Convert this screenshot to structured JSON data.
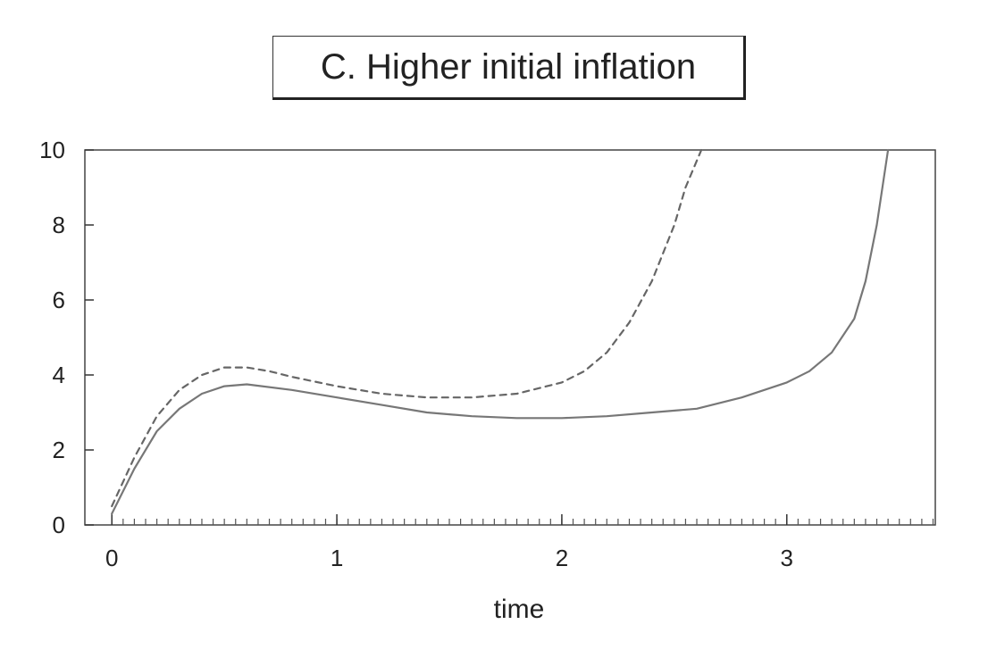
{
  "chart_data": {
    "type": "line",
    "title": "C.  Higher initial inflation",
    "xlabel": "time",
    "ylabel": "",
    "xlim": [
      -0.12,
      3.66
    ],
    "ylim": [
      0,
      10
    ],
    "xticks": [
      0,
      1,
      2,
      3
    ],
    "yticks": [
      0,
      2,
      4,
      6,
      8,
      10
    ],
    "grid": false,
    "legend": "none",
    "series": [
      {
        "style": "dashed",
        "color": "#666666",
        "x": [
          0,
          0.1,
          0.2,
          0.3,
          0.4,
          0.5,
          0.6,
          0.7,
          0.8,
          1.0,
          1.2,
          1.4,
          1.6,
          1.8,
          2.0,
          2.1,
          2.2,
          2.3,
          2.4,
          2.5,
          2.55,
          2.62
        ],
        "y": [
          0.5,
          1.8,
          2.9,
          3.6,
          4.0,
          4.2,
          4.2,
          4.1,
          3.95,
          3.7,
          3.5,
          3.4,
          3.4,
          3.5,
          3.8,
          4.1,
          4.6,
          5.4,
          6.5,
          8.0,
          9.0,
          10.0
        ]
      },
      {
        "style": "solid",
        "color": "#777777",
        "x": [
          0,
          0.1,
          0.2,
          0.3,
          0.4,
          0.5,
          0.6,
          0.8,
          1.0,
          1.2,
          1.4,
          1.6,
          1.8,
          2.0,
          2.2,
          2.4,
          2.6,
          2.8,
          3.0,
          3.1,
          3.2,
          3.3,
          3.35,
          3.4,
          3.45
        ],
        "y": [
          0.3,
          1.5,
          2.5,
          3.1,
          3.5,
          3.7,
          3.75,
          3.6,
          3.4,
          3.2,
          3.0,
          2.9,
          2.85,
          2.85,
          2.9,
          3.0,
          3.1,
          3.4,
          3.8,
          4.1,
          4.6,
          5.5,
          6.5,
          8.0,
          10.0
        ]
      }
    ]
  }
}
